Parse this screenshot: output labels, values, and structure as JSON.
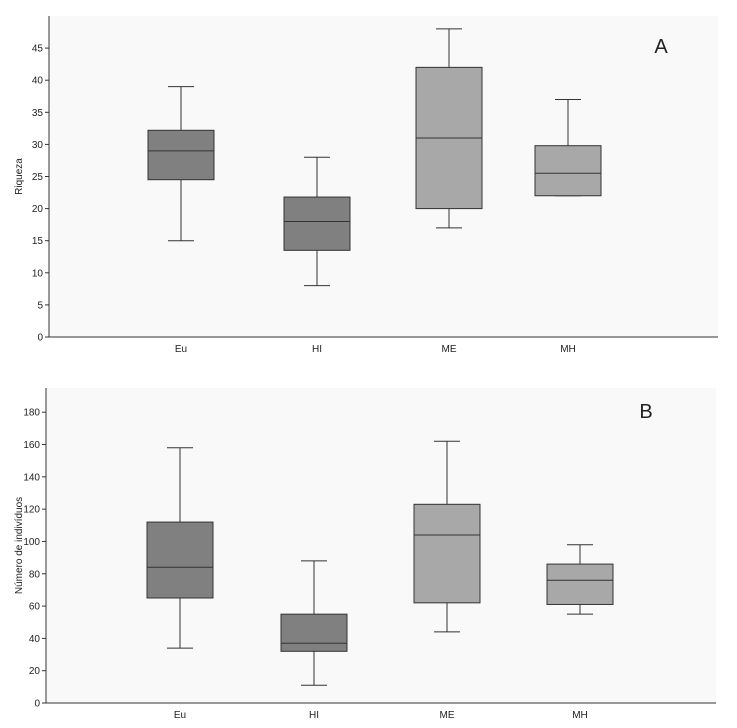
{
  "chart_data": [
    {
      "type": "box",
      "panel_label": "A",
      "ylabel": "Riqueza",
      "xlabel": "",
      "ylim": [
        0,
        50
      ],
      "yticks": [
        0,
        5,
        10,
        15,
        20,
        25,
        30,
        35,
        40,
        45
      ],
      "grid": false,
      "categories": [
        "Eu",
        "HI",
        "ME",
        "MH"
      ],
      "boxes": [
        {
          "min": 15,
          "q1": 24.5,
          "median": 29,
          "q3": 32.2,
          "max": 39,
          "color": "#808080"
        },
        {
          "min": 8,
          "q1": 13.5,
          "median": 18,
          "q3": 21.8,
          "max": 28,
          "color": "#808080"
        },
        {
          "min": 17,
          "q1": 20,
          "median": 31,
          "q3": 42,
          "max": 48,
          "color": "#a8a8a8"
        },
        {
          "min": 22,
          "q1": 22,
          "median": 25.5,
          "q3": 29.8,
          "max": 37,
          "color": "#a8a8a8"
        }
      ]
    },
    {
      "type": "box",
      "panel_label": "B",
      "ylabel": "Número de indivíduos",
      "xlabel": "",
      "ylim": [
        0,
        195
      ],
      "yticks": [
        0,
        20,
        40,
        60,
        80,
        100,
        120,
        140,
        160,
        180
      ],
      "grid": false,
      "categories": [
        "Eu",
        "HI",
        "ME",
        "MH"
      ],
      "boxes": [
        {
          "min": 34,
          "q1": 65,
          "median": 84,
          "q3": 112,
          "max": 158,
          "color": "#808080"
        },
        {
          "min": 11,
          "q1": 32,
          "median": 37,
          "q3": 55,
          "max": 88,
          "color": "#808080"
        },
        {
          "min": 44,
          "q1": 62,
          "median": 104,
          "q3": 123,
          "max": 162,
          "color": "#a8a8a8"
        },
        {
          "min": 55,
          "q1": 61,
          "median": 76,
          "q3": 86,
          "max": 98,
          "color": "#a8a8a8"
        }
      ]
    }
  ]
}
